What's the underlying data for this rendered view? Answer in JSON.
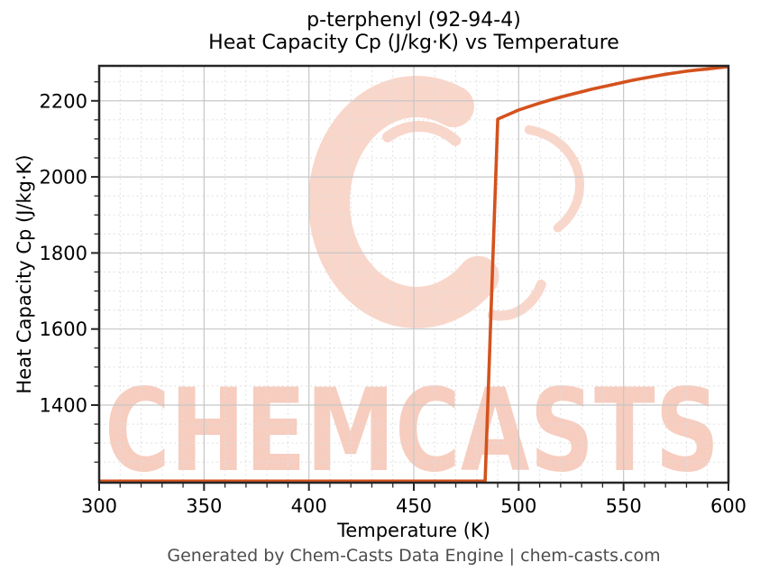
{
  "figure": {
    "footer": "Generated by Chem-Casts Data Engine | chem-casts.com"
  },
  "watermark": {
    "text": "CHEMCASTS",
    "logo": "c-brush-swirl-logo",
    "text_color": "#f6cdbf",
    "logo_color": "#f9d6ca"
  },
  "chart_data": {
    "type": "line",
    "title_lines": [
      "p-terphenyl (92-94-4)",
      "Heat Capacity Cp (J/kg·K) vs Temperature"
    ],
    "title": "p-terphenyl (92-94-4)\nHeat Capacity Cp (J/kg·K) vs Temperature",
    "xlabel": "Temperature (K)",
    "ylabel": "Heat Capacity Cp (J/kg·K)",
    "xlim": [
      300,
      600
    ],
    "ylim": [
      1196,
      2292
    ],
    "x_ticks": [
      300,
      350,
      400,
      450,
      500,
      550,
      600
    ],
    "y_ticks": [
      1400,
      1600,
      1800,
      2000,
      2200
    ],
    "x_minor_step": 10,
    "y_minor_step": 50,
    "grid": true,
    "legend": "none",
    "line_color": "#d4521d",
    "major_grid_color": "#c7c7c7",
    "minor_grid_color": "#dfdfdf",
    "spine_color": "#262626",
    "series": [
      {
        "name": "Heat Capacity Cp",
        "points": [
          [
            300,
            1200
          ],
          [
            325,
            1200
          ],
          [
            350,
            1200
          ],
          [
            375,
            1200
          ],
          [
            400,
            1200
          ],
          [
            425,
            1200
          ],
          [
            450,
            1200
          ],
          [
            470,
            1200
          ],
          [
            480,
            1200
          ],
          [
            484,
            1200
          ],
          [
            490,
            2152
          ],
          [
            495,
            2164
          ],
          [
            500,
            2176
          ],
          [
            505,
            2185
          ],
          [
            510,
            2194
          ],
          [
            515,
            2202
          ],
          [
            520,
            2210
          ],
          [
            525,
            2217
          ],
          [
            530,
            2224
          ],
          [
            535,
            2231
          ],
          [
            540,
            2237
          ],
          [
            545,
            2243
          ],
          [
            550,
            2249
          ],
          [
            555,
            2255
          ],
          [
            560,
            2260
          ],
          [
            565,
            2265
          ],
          [
            570,
            2270
          ],
          [
            575,
            2274
          ],
          [
            580,
            2278
          ],
          [
            585,
            2281
          ],
          [
            590,
            2284
          ],
          [
            595,
            2287
          ],
          [
            600,
            2290
          ]
        ]
      }
    ]
  }
}
